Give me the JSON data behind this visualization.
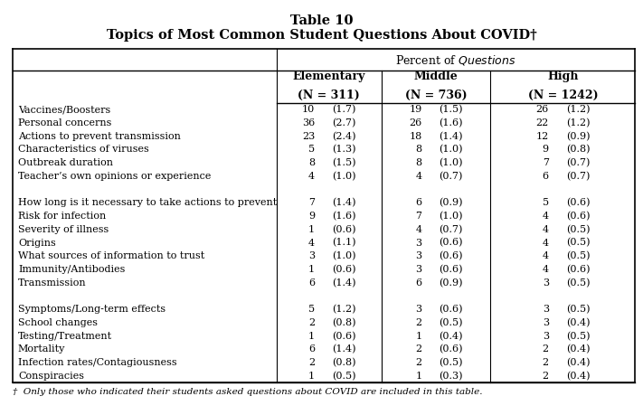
{
  "title_line1": "Table 10",
  "title_line2": "Topics of Most Common Student Questions About COVID†",
  "col_headers": [
    [
      "Elementary",
      "(N = 311)"
    ],
    [
      "Middle",
      "(N = 736)"
    ],
    [
      "High",
      "(N = 1242)"
    ]
  ],
  "row_groups": [
    {
      "rows": [
        [
          "Vaccines/Boosters",
          "10",
          "(1.7)",
          "19",
          "(1.5)",
          "26",
          "(1.2)"
        ],
        [
          "Personal concerns",
          "36",
          "(2.7)",
          "26",
          "(1.6)",
          "22",
          "(1.2)"
        ],
        [
          "Actions to prevent transmission",
          "23",
          "(2.4)",
          "18",
          "(1.4)",
          "12",
          "(0.9)"
        ],
        [
          "Characteristics of viruses",
          "5",
          "(1.3)",
          "8",
          "(1.0)",
          "9",
          "(0.8)"
        ],
        [
          "Outbreak duration",
          "8",
          "(1.5)",
          "8",
          "(1.0)",
          "7",
          "(0.7)"
        ],
        [
          "Teacher’s own opinions or experience",
          "4",
          "(1.0)",
          "4",
          "(0.7)",
          "6",
          "(0.7)"
        ]
      ]
    },
    {
      "rows": [
        [
          "How long is it necessary to take actions to prevent",
          "7",
          "(1.4)",
          "6",
          "(0.9)",
          "5",
          "(0.6)"
        ],
        [
          "Risk for infection",
          "9",
          "(1.6)",
          "7",
          "(1.0)",
          "4",
          "(0.6)"
        ],
        [
          "Severity of illness",
          "1",
          "(0.6)",
          "4",
          "(0.7)",
          "4",
          "(0.5)"
        ],
        [
          "Origins",
          "4",
          "(1.1)",
          "3",
          "(0.6)",
          "4",
          "(0.5)"
        ],
        [
          "What sources of information to trust",
          "3",
          "(1.0)",
          "3",
          "(0.6)",
          "4",
          "(0.5)"
        ],
        [
          "Immunity/Antibodies",
          "1",
          "(0.6)",
          "3",
          "(0.6)",
          "4",
          "(0.6)"
        ],
        [
          "Transmission",
          "6",
          "(1.4)",
          "6",
          "(0.9)",
          "3",
          "(0.5)"
        ]
      ]
    },
    {
      "rows": [
        [
          "Symptoms/Long-term effects",
          "5",
          "(1.2)",
          "3",
          "(0.6)",
          "3",
          "(0.5)"
        ],
        [
          "School changes",
          "2",
          "(0.8)",
          "2",
          "(0.5)",
          "3",
          "(0.4)"
        ],
        [
          "Testing/Treatment",
          "1",
          "(0.6)",
          "1",
          "(0.4)",
          "3",
          "(0.5)"
        ],
        [
          "Mortality",
          "6",
          "(1.4)",
          "2",
          "(0.6)",
          "2",
          "(0.4)"
        ],
        [
          "Infection rates/Contagiousness",
          "2",
          "(0.8)",
          "2",
          "(0.5)",
          "2",
          "(0.4)"
        ],
        [
          "Conspiracies",
          "1",
          "(0.5)",
          "1",
          "(0.3)",
          "2",
          "(0.4)"
        ]
      ]
    }
  ],
  "footnote": "†  Only those who indicated their students asked questions about COVID are included in this table."
}
